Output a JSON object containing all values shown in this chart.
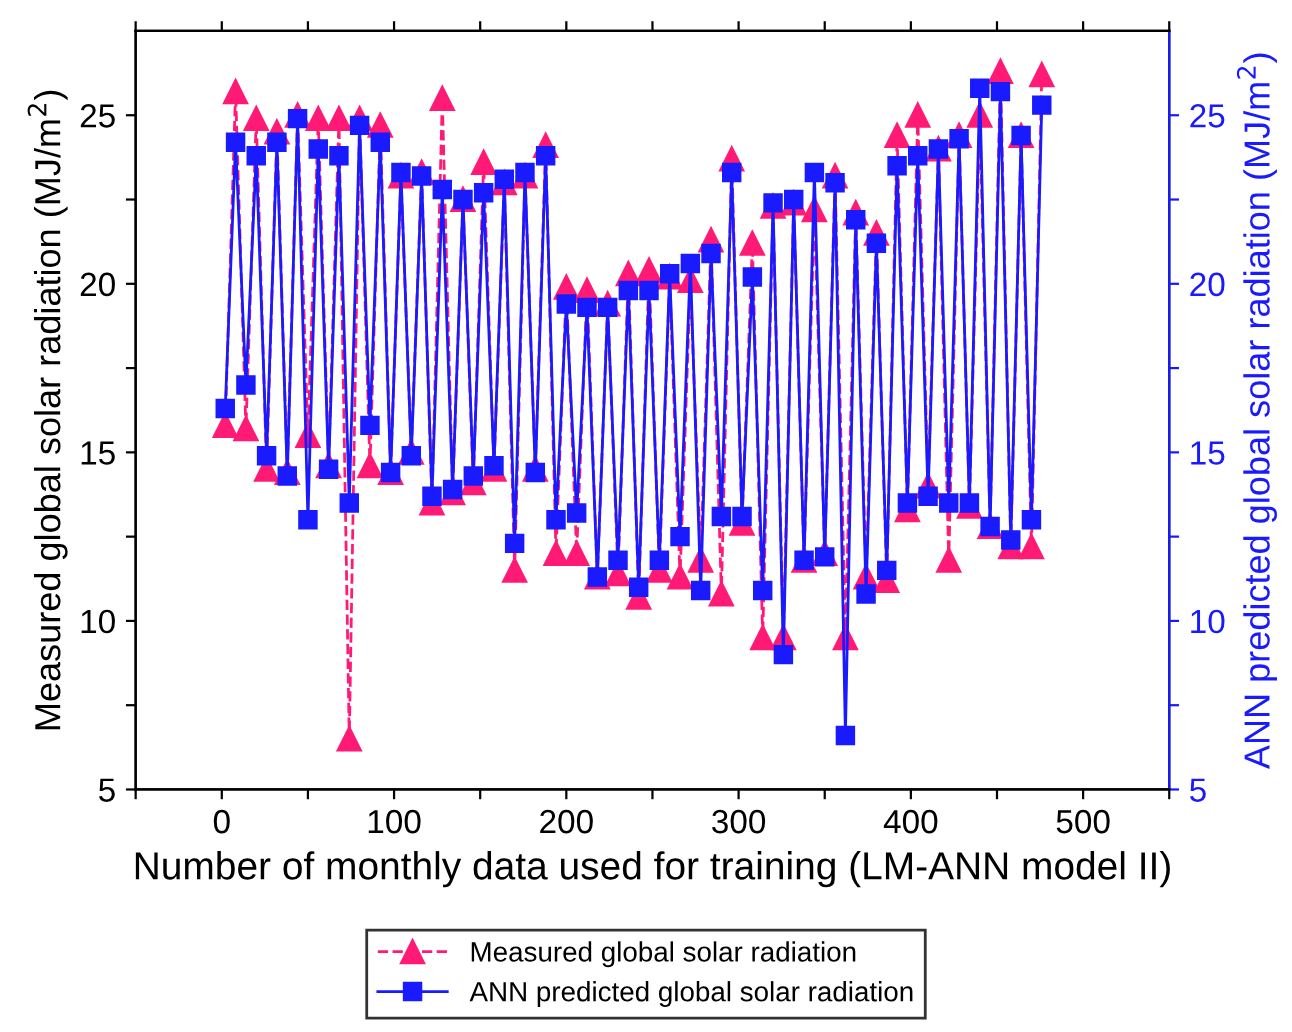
{
  "chart_data": {
    "type": "line",
    "xlabel": "Number of monthly data used for training (LM-ANN model II)",
    "ylabel": "Measured global solar radiation (MJ/m$^{2}$)",
    "y2label": "ANN predicted global solar radiation (MJ/m$^{2}$)",
    "x": [
      2,
      8,
      14,
      20,
      26,
      32,
      38,
      44,
      50,
      56,
      62,
      68,
      74,
      80,
      86,
      92,
      98,
      104,
      110,
      116,
      122,
      128,
      134,
      140,
      146,
      152,
      158,
      164,
      170,
      176,
      182,
      188,
      194,
      200,
      206,
      212,
      218,
      224,
      230,
      236,
      242,
      248,
      254,
      260,
      266,
      272,
      278,
      284,
      290,
      296,
      302,
      308,
      314,
      320,
      326,
      332,
      338,
      344,
      350,
      356,
      362,
      368,
      374,
      380,
      386,
      392,
      398,
      404,
      410,
      416,
      422,
      428,
      434,
      440,
      446,
      452,
      458,
      464,
      470,
      476
    ],
    "series": [
      {
        "name": "Measured global solar radiation",
        "color": "#ff1a75",
        "marker": "triangle",
        "line_style": "dashed",
        "values": [
          15.8,
          25.7,
          15.7,
          24.9,
          14.5,
          24.5,
          14.4,
          25.0,
          15.5,
          24.9,
          14.6,
          24.9,
          6.5,
          24.9,
          14.6,
          24.7,
          14.4,
          23.2,
          15.0,
          23.3,
          13.5,
          25.5,
          13.8,
          22.5,
          14.1,
          23.6,
          14.5,
          23.0,
          11.5,
          23.2,
          14.5,
          24.1,
          12.0,
          19.9,
          12.0,
          19.8,
          11.3,
          19.4,
          11.4,
          20.3,
          10.7,
          20.4,
          11.5,
          20.2,
          11.3,
          20.1,
          11.8,
          21.3,
          10.8,
          23.7,
          12.9,
          21.2,
          9.5,
          22.3,
          9.5,
          22.4,
          11.8,
          22.2,
          12.0,
          23.2,
          9.5,
          22.1,
          11.3,
          21.5,
          11.2,
          24.4,
          13.3,
          25.0,
          14.0,
          24.0,
          11.8,
          24.4,
          13.4,
          25.0,
          12.8,
          26.3,
          12.2,
          24.4,
          12.2,
          26.2
        ]
      },
      {
        "name": "ANN predicted global solar radiation",
        "color": "#1a1aff",
        "marker": "square",
        "line_style": "solid",
        "axis": "y2",
        "values": [
          16.3,
          24.2,
          17.0,
          23.8,
          14.9,
          24.2,
          14.3,
          24.9,
          13.0,
          24.0,
          14.5,
          23.8,
          13.5,
          24.7,
          15.8,
          24.2,
          14.4,
          23.3,
          14.9,
          23.2,
          13.7,
          22.8,
          13.9,
          22.5,
          14.3,
          22.7,
          14.6,
          23.1,
          12.3,
          23.3,
          14.4,
          23.8,
          13.0,
          19.4,
          13.2,
          19.3,
          11.3,
          19.3,
          11.8,
          19.8,
          11.0,
          19.8,
          11.8,
          20.3,
          12.5,
          20.6,
          10.9,
          20.9,
          13.1,
          23.3,
          13.1,
          20.2,
          10.9,
          22.4,
          9.0,
          22.5,
          11.8,
          23.3,
          11.9,
          23.0,
          6.6,
          21.9,
          10.8,
          21.2,
          11.5,
          23.5,
          13.5,
          23.8,
          13.7,
          24.0,
          13.5,
          24.3,
          13.5,
          25.8,
          12.8,
          25.7,
          12.4,
          24.4,
          13.0,
          25.3
        ]
      }
    ],
    "xlim": [
      -50,
      550
    ],
    "xticks": [
      {
        "value": -50,
        "label": null
      },
      0,
      {
        "value": 50,
        "label": null
      },
      100,
      {
        "value": 150,
        "label": null
      },
      200,
      {
        "value": 250,
        "label": null
      },
      300,
      {
        "value": 350,
        "label": null
      },
      400,
      {
        "value": 450,
        "label": null
      },
      500,
      {
        "value": 550,
        "label": null
      }
    ],
    "ylim": [
      5,
      27.5
    ],
    "yticks": [
      5,
      {
        "value": 7.5,
        "label": null
      },
      10,
      {
        "value": 12.5,
        "label": null
      },
      15,
      {
        "value": 17.5,
        "label": null
      },
      20,
      {
        "value": 22.5,
        "label": null
      },
      25
    ],
    "y2lim": [
      5,
      27.5
    ],
    "y2ticks": [
      5,
      {
        "value": 7.5,
        "label": null
      },
      10,
      {
        "value": 12.5,
        "label": null
      },
      15,
      {
        "value": 17.5,
        "label": null
      },
      20,
      {
        "value": 22.5,
        "label": null
      },
      25
    ],
    "legend": "bottom",
    "grid": false
  }
}
